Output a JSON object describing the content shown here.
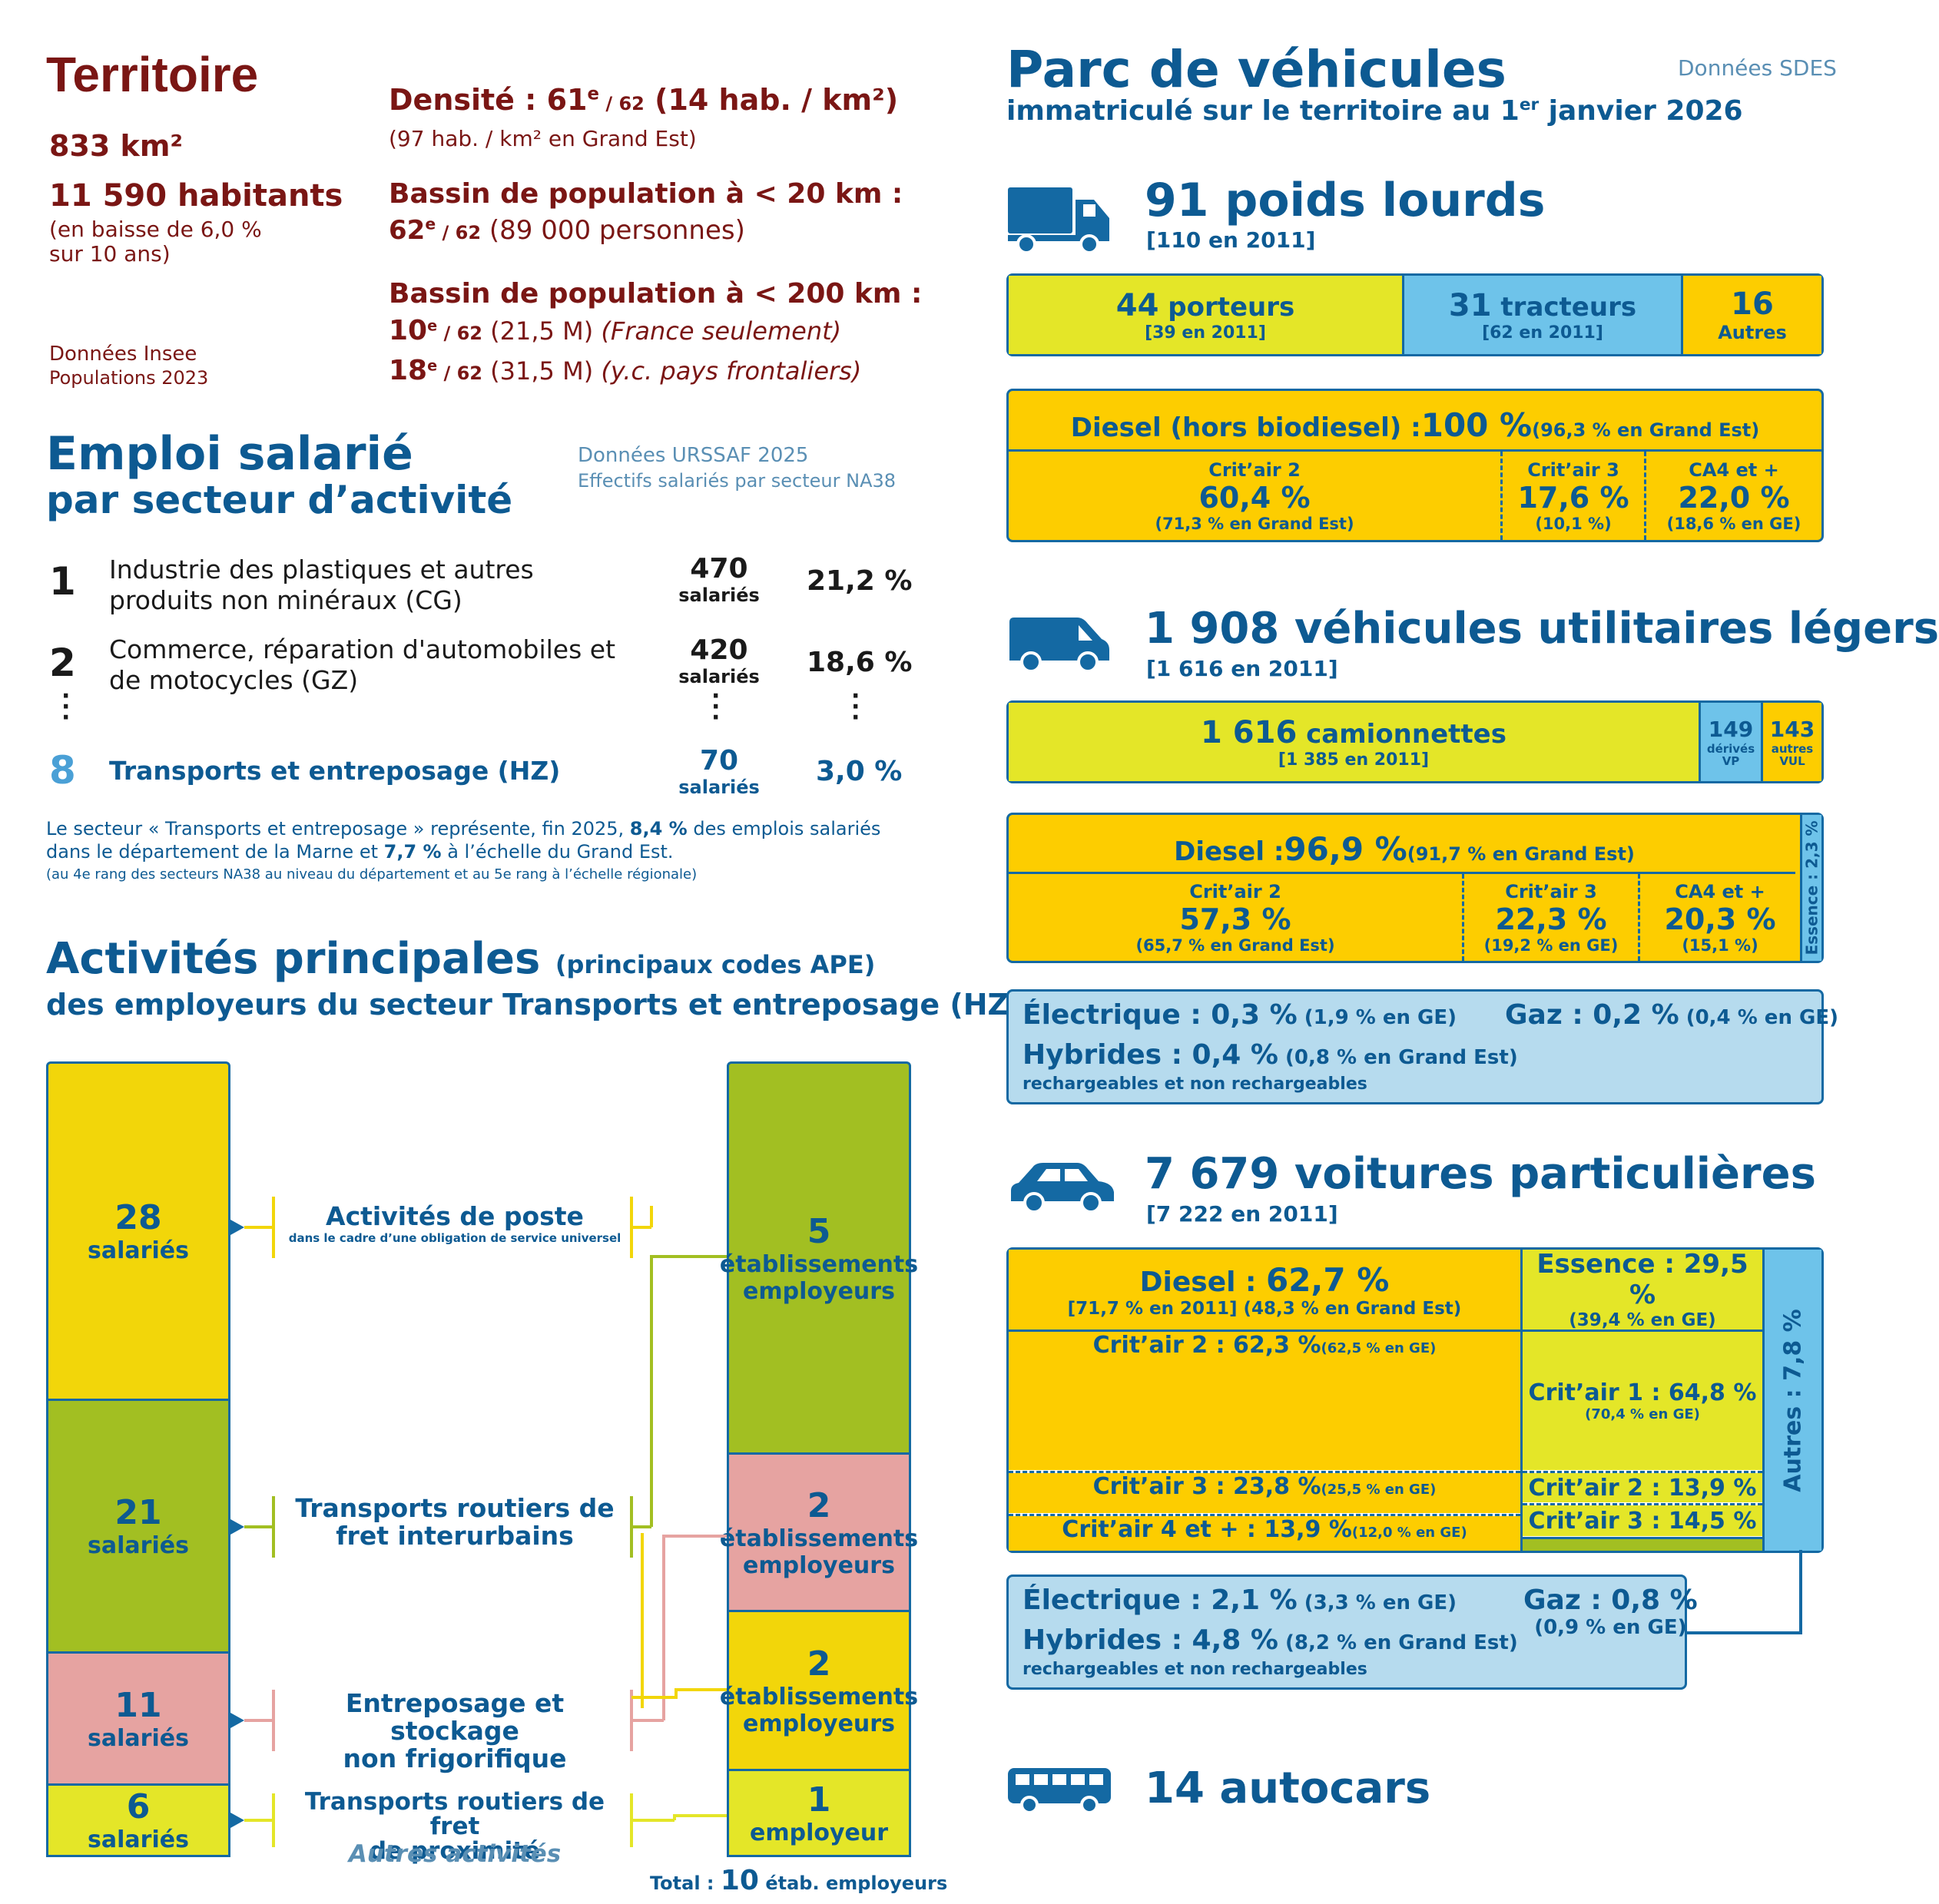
{
  "territoire": {
    "title": "Territoire",
    "area": "833 km²",
    "habitants": "11 590 habitants",
    "baisse": "(en baisse de 6,0 %",
    "baisse2": "sur 10 ans)",
    "source1": "Données Insee",
    "source2": "Populations 2023",
    "densite_label": "Densité : 61",
    "densite_sup": "e",
    "densite_rank": " / 62",
    "densite_val": " (14 hab. / km²)",
    "densite_ge": "(97 hab. / km² en Grand Est)",
    "bassin20_label": "Bassin de population à < 20 km :",
    "bassin20_rank": "62",
    "bassin20_sup": "e",
    "bassin20_of": " / 62",
    "bassin20_val": " (89 000 personnes)",
    "bassin200_label": "Bassin de population à < 200 km :",
    "bassin200_r1": "10",
    "bassin200_r1_sup": "e",
    "bassin200_r1_of": " / 62",
    "bassin200_r1_val": " (21,5 M) ",
    "bassin200_r1_note": "(France seulement)",
    "bassin200_r2": "18",
    "bassin200_r2_sup": "e",
    "bassin200_r2_of": " / 62",
    "bassin200_r2_val": " (31,5 M) ",
    "bassin200_r2_note": "(y.c. pays frontaliers)"
  },
  "emploi": {
    "title": "Emploi salarié",
    "subtitle": "par secteur d’activité",
    "source1": "Données URSSAF 2025",
    "source2": "Effectifs salariés par secteur NA38",
    "rows": [
      {
        "rank": "1",
        "label1": "Industrie des plastiques et autres",
        "label2": "produits non minéraux (CG)",
        "count": "470",
        "unit": "salariés",
        "pct": "21,2 %"
      },
      {
        "rank": "2",
        "label1": "Commerce, réparation d'automobiles et",
        "label2": "de motocycles (GZ)",
        "count": "420",
        "unit": "salariés",
        "pct": "18,6 %"
      },
      {
        "rank": "8",
        "label1": "Transports et entreposage (HZ)",
        "label2": "",
        "count": "70",
        "unit": "salariés",
        "pct": "3,0 %"
      }
    ],
    "note1a": "Le secteur « Transports et entreposage » représente, fin 2025, ",
    "note1b": "8,4 %",
    "note1c": " des emplois salariés",
    "note2a": "dans le département de la Marne et ",
    "note2b": "7,7 %",
    "note2c": " à l’échelle du Grand Est.",
    "note3": "(au 4e rang des secteurs NA38 au niveau du département et au 5e rang à l’échelle régionale)"
  },
  "activites": {
    "title": "Activités principales",
    "title_paren": "(principaux codes APE)",
    "subtitle": "des employeurs du secteur Transports et entreposage (HZ)",
    "left": [
      {
        "num": "28",
        "unit": "salariés"
      },
      {
        "num": "21",
        "unit": "salariés"
      },
      {
        "num": "11",
        "unit": "salariés"
      },
      {
        "num": "6",
        "unit": "salariés"
      }
    ],
    "labels": [
      {
        "l1": "Activités de poste",
        "l2": "dans le cadre d’une obligation de service universel"
      },
      {
        "l1": "Transports routiers de",
        "l2": "fret interurbains"
      },
      {
        "l1": "Entreposage et stockage",
        "l2": "non frigorifique"
      },
      {
        "l1": "Transports routiers de fret",
        "l2": "de proximité"
      }
    ],
    "autres": "Autres activités",
    "right": [
      {
        "num": "5",
        "unit1": "établissements",
        "unit2": "employeurs"
      },
      {
        "num": "2",
        "unit1": "établissements",
        "unit2": "employeurs"
      },
      {
        "num": "2",
        "unit1": "établissements",
        "unit2": "employeurs"
      },
      {
        "num": "1",
        "unit1": "employeur",
        "unit2": ""
      }
    ],
    "total_label": "Total : ",
    "total_num": "10",
    "total_unit": " étab. employeurs"
  },
  "parc": {
    "title": "Parc de véhicules",
    "subtitle_a": "immatriculé sur le territoire au 1",
    "subtitle_sup": "er",
    "subtitle_b": " janvier 2026",
    "source": "Données SDES",
    "pl": {
      "title": "91 poids lourds",
      "sub": "[110 en 2011]",
      "porteurs_num": "44",
      "porteurs_label": " porteurs",
      "porteurs_sub": "[39 en 2011]",
      "tracteurs_num": "31",
      "tracteurs_label": " tracteurs",
      "tracteurs_sub": "[62 en 2011]",
      "autres_num": "16",
      "autres_label": "Autres",
      "diesel_label": "Diesel (hors biodiesel) : ",
      "diesel_val": "100 %",
      "diesel_ge": " (96,3 % en Grand Est)",
      "c2_label": "Crit’air 2",
      "c2_val": "60,4 %",
      "c2_ge": "(71,3 % en Grand Est)",
      "c3_label": "Crit’air 3",
      "c3_val": "17,6 %",
      "c3_ge": "(10,1 %)",
      "c4_label": "CA4 et +",
      "c4_val": "22,0 %",
      "c4_ge": "(18,6 % en GE)"
    },
    "vul": {
      "title": "1 908 véhicules utilitaires légers",
      "sub": "[1 616 en 2011]",
      "cam_num": "1 616",
      "cam_label": " camionnettes",
      "cam_sub": "[1 385 en 2011]",
      "vp_num": "149",
      "vp_l1": "dérivés",
      "vp_l2": "VP",
      "autres_num": "143",
      "autres_l1": "autres",
      "autres_l2": "VUL",
      "diesel_label": "Diesel : ",
      "diesel_val": "96,9 %",
      "diesel_ge": " (91,7 % en Grand Est)",
      "c2_label": "Crit’air 2",
      "c2_val": "57,3 %",
      "c2_ge": "(65,7 % en Grand Est)",
      "c3_label": "Crit’air 3",
      "c3_val": "22,3 %",
      "c3_ge": "(19,2 % en GE)",
      "c4_label": "CA4 et +",
      "c4_val": "20,3 %",
      "c4_ge": "(15,1 %)",
      "essence": "Essence : 2,3 %",
      "elec_label": "Électrique : ",
      "elec_val": "0,3 %",
      "elec_ge": " (1,9 % en GE)",
      "gaz_label": "Gaz : ",
      "gaz_val": "0,2 %",
      "gaz_ge": " (0,4 % en GE)",
      "hyb_label": "Hybrides : ",
      "hyb_val": "0,4 %",
      "hyb_ge": " (0,8 % en Grand Est)",
      "hyb_sub": "rechargeables et non rechargeables"
    },
    "vp": {
      "title": "7 679 voitures particulières",
      "sub": "[7 222 en 2011]",
      "diesel_label": "Diesel : ",
      "diesel_val": "62,7 %",
      "diesel_sub": "[71,7 % en 2011]  (48,3 % en Grand Est)",
      "essence_label": "Essence : 29,5 %",
      "essence_ge": "(39,4 % en GE)",
      "d_c2": "Crit’air 2 : 62,3 %",
      "d_c2_ge": " (62,5 % en GE)",
      "d_c3": "Crit’air 3 : 23,8 %",
      "d_c3_ge": " (25,5 % en GE)",
      "d_c4": "Crit’air 4 et + : 13,9 %",
      "d_c4_ge": " (12,0 % en GE)",
      "e_c1": "Crit’air 1 : 64,8 %",
      "e_c1_ge": "(70,4 % en GE)",
      "e_c2": "Crit’air 2 : 13,9 %",
      "e_c3": "Crit’air 3 : 14,5 %",
      "autres": "Autres : 7,8 %",
      "elec_label": "Électrique : ",
      "elec_val": "2,1 %",
      "elec_ge": " (3,3 % en GE)",
      "gaz_label": "Gaz : ",
      "gaz_val": "0,8 %",
      "gaz_ge": "(0,9 % en GE)",
      "hyb_label": "Hybrides : ",
      "hyb_val": "4,8 %",
      "hyb_ge": " (8,2 % en Grand Est)",
      "hyb_sub": "rechargeables et non rechargeables"
    },
    "autocars": {
      "title": "14 autocars"
    }
  },
  "colors": {
    "blue": "#1469a3",
    "maroon": "#7a1614",
    "yellow": "#e4e628",
    "orange": "#fdcd00",
    "green": "#a2bf22",
    "pink": "#e6a3a1",
    "sky": "#6ec3ea",
    "pale": "#b6dbee",
    "gold": "#f2d60a"
  },
  "icons": [
    "truck-icon",
    "van-icon",
    "car-icon",
    "bus-icon"
  ]
}
